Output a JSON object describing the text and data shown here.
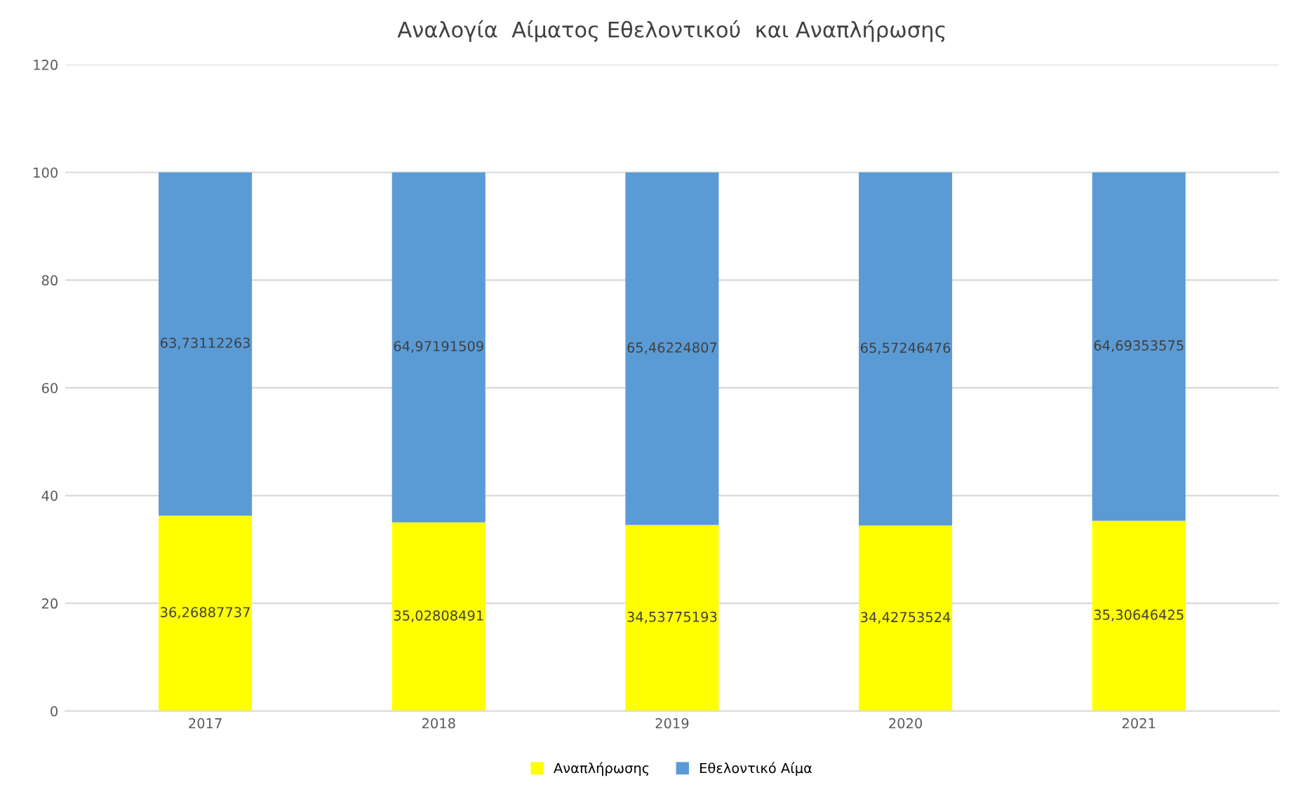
{
  "chart_data": {
    "type": "bar",
    "title": "Αναλογία  Αίματος Εθελοντικού  και Αναπλήρωσης",
    "categories": [
      "2017",
      "2018",
      "2019",
      "2020",
      "2021"
    ],
    "stacked": true,
    "series": [
      {
        "name": "Αναπλήρωσης",
        "color": "#ffff00",
        "values": [
          36.26887737,
          35.02808491,
          34.53775193,
          34.42753524,
          35.30646425
        ],
        "value_labels": [
          "36,26887737",
          "35,02808491",
          "34,53775193",
          "34,42753524",
          "35,30646425"
        ]
      },
      {
        "name": "Εθελοντικό Αίμα",
        "color": "#5b9bd5",
        "values": [
          63.73112263,
          64.97191509,
          65.46224807,
          65.57246476,
          64.69353575
        ],
        "value_labels": [
          "63,73112263",
          "64,97191509",
          "65,46224807",
          "65,57246476",
          "64,69353575"
        ]
      }
    ],
    "ylim": [
      0,
      120
    ],
    "yticks": [
      0,
      20,
      40,
      60,
      80,
      100,
      120
    ],
    "grid": "y",
    "legend": "bottom"
  }
}
